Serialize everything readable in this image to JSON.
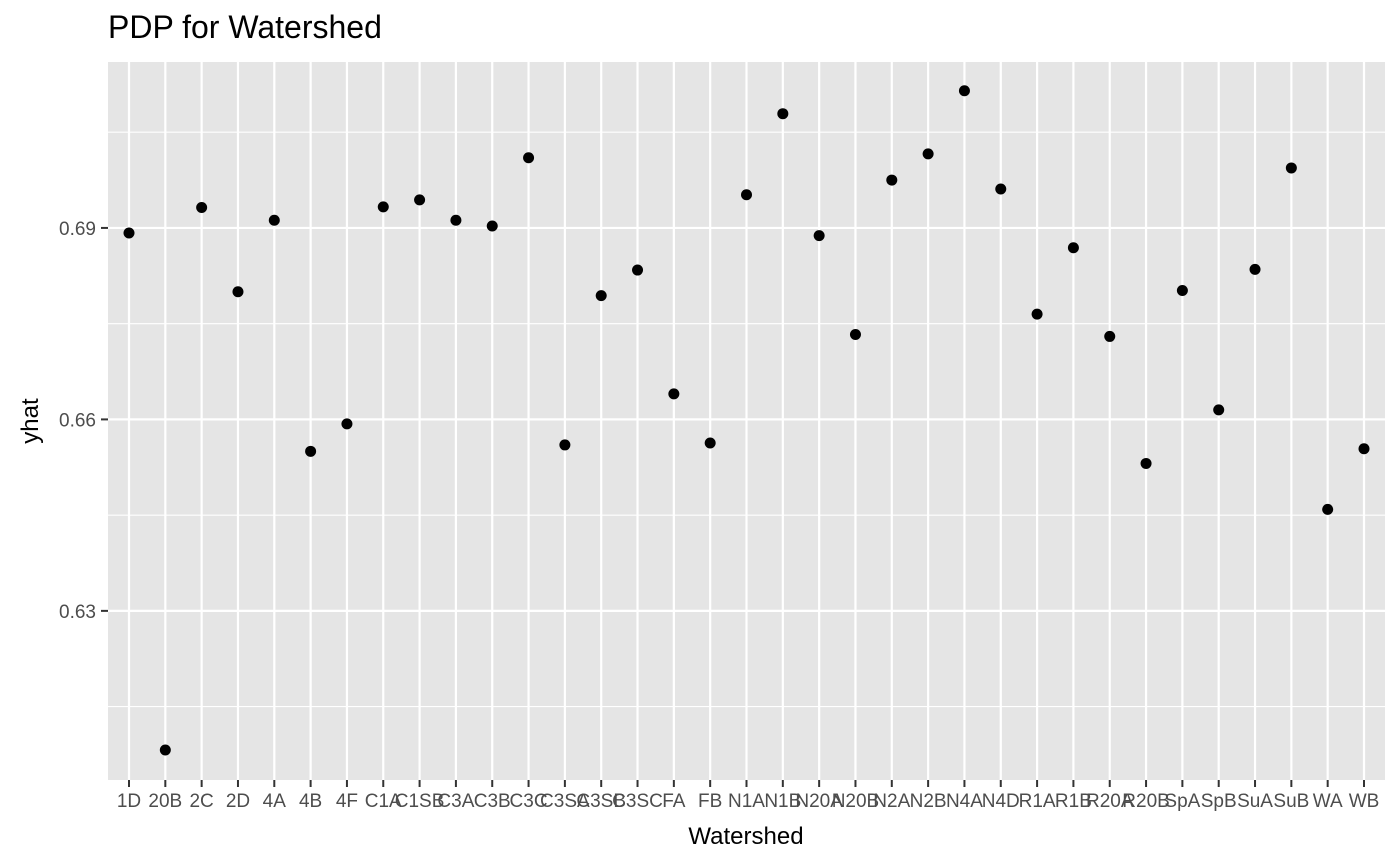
{
  "chart_data": {
    "type": "scatter",
    "title": "PDP for Watershed",
    "xlabel": "Watershed",
    "ylabel": "yhat",
    "ylim": [
      0.6035,
      0.716
    ],
    "yticks": [
      0.63,
      0.66,
      0.69
    ],
    "ytick_labels": [
      "0.63",
      "0.66",
      "0.69"
    ],
    "grid": true,
    "panel_background": "#e5e5e5",
    "grid_color": "#ffffff",
    "point_color": "#000000",
    "categories": [
      "1D",
      "20B",
      "2C",
      "2D",
      "4A",
      "4B",
      "4F",
      "C1A",
      "C1SB",
      "C3A",
      "C3B",
      "C3C",
      "C3SA",
      "C3SB",
      "C3SC",
      "FA",
      "FB",
      "N1A",
      "N1B",
      "N20A",
      "N20B",
      "N2A",
      "N2B",
      "N4A",
      "N4D",
      "R1A",
      "R1B",
      "R20A",
      "R20B",
      "SpA",
      "SpB",
      "SuA",
      "SuB",
      "WA",
      "WB"
    ],
    "tick_labels": [
      "1D",
      "20B",
      "2C",
      "2D",
      "4A",
      "4B",
      "4F",
      "C1A",
      "C1SB",
      "C3A",
      "C3B",
      "C3C",
      "C3SA",
      "C3SB",
      "C3SC",
      "FA",
      "FB",
      "N1A",
      "N1B",
      "N20A",
      "N20B",
      "N2A",
      "N2B",
      "N4A",
      "N4D",
      "R1A",
      "R1B",
      "R20A",
      "R20B",
      "SpA",
      "SpB",
      "SuA",
      "SuB",
      "WA",
      "WB"
    ],
    "values": [
      0.6892,
      0.6082,
      0.6932,
      0.68,
      0.6912,
      0.655,
      0.6593,
      0.6933,
      0.6944,
      0.6912,
      0.6903,
      0.701,
      0.656,
      0.6794,
      0.6834,
      0.664,
      0.6563,
      0.6952,
      0.7079,
      0.6888,
      0.6733,
      0.6975,
      0.7016,
      0.7115,
      0.6961,
      0.6765,
      0.6869,
      0.673,
      0.6531,
      0.6802,
      0.6615,
      0.6835,
      0.6994,
      0.6459,
      0.6554
    ]
  }
}
